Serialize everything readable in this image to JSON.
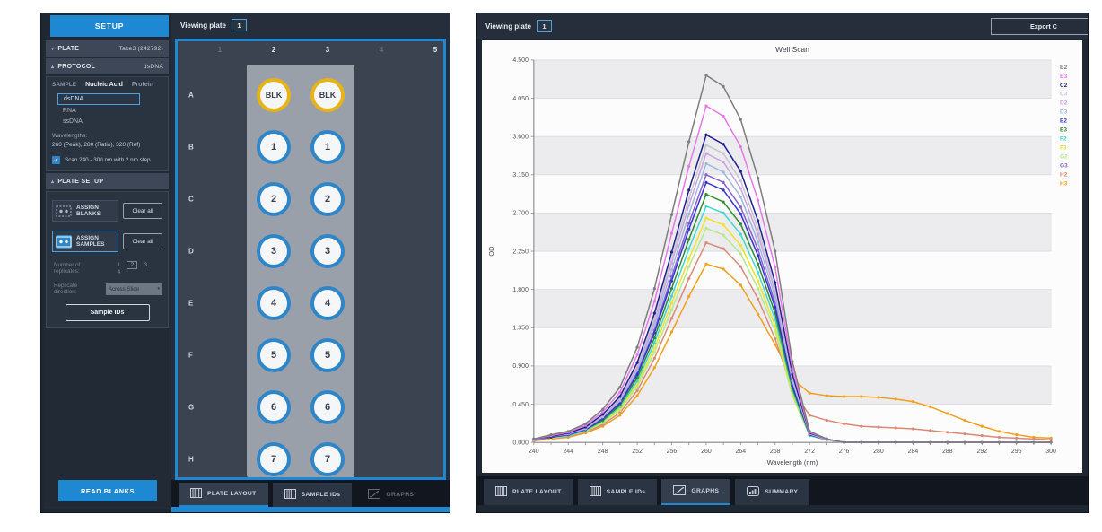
{
  "accent_color": "#1e88d2",
  "left_window": {
    "sidebar": {
      "setup_title": "SETUP",
      "plate_row": {
        "label": "PLATE",
        "value": "Take3 (242792)"
      },
      "protocol_row": {
        "label": "PROTOCOL",
        "value": "dsDNA"
      },
      "sample_section": {
        "label": "SAMPLE",
        "type_tabs": [
          {
            "label": "Nucleic Acid",
            "active": true
          },
          {
            "label": "Protein",
            "active": false
          }
        ],
        "options": [
          "dsDNA",
          "RNA",
          "ssDNA"
        ],
        "selected_option": "dsDNA",
        "wavelengths_label": "Wavelengths:",
        "wavelengths_value": "260 (Peak), 280 (Ratio), 320 (Ref)",
        "scan_option": {
          "checked": true,
          "label": "Scan 240 - 300 nm with 2 nm step"
        }
      },
      "plate_setup_section": {
        "label": "PLATE SETUP",
        "assign_blanks_label": "ASSIGN BLANKS",
        "assign_samples_label": "ASSIGN SAMPLES",
        "clear_all_label": "Clear all",
        "replicates_label": "Number of replicates:",
        "replicates_options": [
          "1",
          "2",
          "3",
          "4"
        ],
        "replicates_selected": "2",
        "direction_label": "Replicate direction:",
        "direction_value": "Across Slide",
        "sample_ids_label": "Sample IDs"
      },
      "read_blanks_label": "READ BLANKS"
    },
    "plate_view": {
      "header_label": "Viewing plate",
      "plate_number": "1",
      "column_labels": [
        "1",
        "2",
        "3",
        "4",
        "5"
      ],
      "column_dimmed": [
        true,
        false,
        false,
        true,
        false
      ],
      "row_labels": [
        "A",
        "B",
        "C",
        "D",
        "E",
        "F",
        "G",
        "H"
      ],
      "well_labels_by_row": [
        "BLK",
        "1",
        "2",
        "3",
        "4",
        "5",
        "6",
        "7"
      ],
      "well_columns": [
        "2",
        "3"
      ],
      "blank_ring_color": "#e7b416",
      "sample_ring_color": "#2e86c8"
    },
    "tabs": [
      {
        "label": "PLATE LAYOUT",
        "icon": "grid",
        "active": true,
        "dimmed": false
      },
      {
        "label": "SAMPLE IDs",
        "icon": "grid",
        "active": false,
        "dimmed": false
      },
      {
        "label": "GRAPHS",
        "icon": "line",
        "active": false,
        "dimmed": true
      }
    ]
  },
  "right_window": {
    "header_label": "Viewing plate",
    "plate_number": "1",
    "export_button_label": "Export C",
    "tabs": [
      {
        "label": "PLATE LAYOUT",
        "icon": "grid",
        "active": false,
        "dimmed": false
      },
      {
        "label": "SAMPLE IDs",
        "icon": "grid",
        "active": false,
        "dimmed": false
      },
      {
        "label": "GRAPHS",
        "icon": "line",
        "active": true,
        "dimmed": false
      },
      {
        "label": "SUMMARY",
        "icon": "bars",
        "active": false,
        "dimmed": false
      }
    ]
  },
  "chart_data": {
    "type": "line",
    "title": "Well Scan",
    "xlabel": "Wavelength (nm)",
    "ylabel": "OD",
    "xlim": [
      240,
      300
    ],
    "ylim": [
      0,
      4.5
    ],
    "x_tick_labels": [
      240,
      244,
      248,
      252,
      256,
      260,
      264,
      268,
      272,
      276,
      280,
      284,
      288,
      292,
      296,
      300
    ],
    "y_tick_labels": [
      "0.000",
      "0.450",
      "0.900",
      "1.350",
      "1.800",
      "2.250",
      "2.700",
      "3.150",
      "3.600",
      "4.050",
      "4.500"
    ],
    "grid": true,
    "striped_background": true,
    "legend_position": "right",
    "x": [
      240,
      242,
      244,
      246,
      248,
      250,
      252,
      254,
      256,
      258,
      260,
      262,
      264,
      266,
      268,
      270,
      272,
      274,
      276,
      278,
      280,
      282,
      284,
      286,
      288,
      290,
      292,
      294,
      296,
      298,
      300
    ],
    "series": [
      {
        "name": "B2",
        "color": "#7d7d7d",
        "values": [
          0.04,
          0.09,
          0.13,
          0.22,
          0.39,
          0.65,
          1.12,
          1.81,
          2.68,
          3.54,
          4.32,
          4.19,
          3.8,
          3.11,
          2.25,
          0.95,
          0.13,
          0.04,
          0,
          0,
          0,
          0,
          0,
          0,
          0,
          0,
          0,
          0,
          0,
          0,
          0
        ]
      },
      {
        "name": "B3",
        "color": "#e678e6",
        "values": [
          0.04,
          0.08,
          0.12,
          0.2,
          0.36,
          0.59,
          1.03,
          1.66,
          2.46,
          3.25,
          3.96,
          3.84,
          3.48,
          2.85,
          2.06,
          0.87,
          0.12,
          0.04,
          0,
          0,
          0,
          0,
          0,
          0,
          0,
          0,
          0,
          0,
          0,
          0,
          0
        ]
      },
      {
        "name": "C2",
        "color": "#20208c",
        "values": [
          0.04,
          0.07,
          0.11,
          0.18,
          0.33,
          0.54,
          0.94,
          1.52,
          2.24,
          2.97,
          3.62,
          3.51,
          3.19,
          2.61,
          1.88,
          0.8,
          0.11,
          0.04,
          0,
          0,
          0,
          0,
          0,
          0,
          0,
          0,
          0,
          0,
          0,
          0,
          0
        ]
      },
      {
        "name": "C3",
        "color": "#c6c6ce",
        "values": [
          0.04,
          0.07,
          0.11,
          0.18,
          0.32,
          0.53,
          0.91,
          1.47,
          2.17,
          2.87,
          3.5,
          3.4,
          3.08,
          2.52,
          1.82,
          0.77,
          0.11,
          0.03,
          0,
          0,
          0,
          0,
          0,
          0,
          0,
          0,
          0,
          0,
          0,
          0,
          0
        ]
      },
      {
        "name": "D2",
        "color": "#c9a3e0",
        "values": [
          0.03,
          0.07,
          0.1,
          0.17,
          0.31,
          0.51,
          0.88,
          1.43,
          2.11,
          2.79,
          3.4,
          3.3,
          2.99,
          2.45,
          1.77,
          0.75,
          0.1,
          0.03,
          0,
          0,
          0,
          0,
          0,
          0,
          0,
          0,
          0,
          0,
          0,
          0,
          0
        ]
      },
      {
        "name": "D3",
        "color": "#9db8dc",
        "values": [
          0.03,
          0.07,
          0.1,
          0.16,
          0.3,
          0.49,
          0.85,
          1.38,
          2.03,
          2.69,
          3.28,
          3.18,
          2.89,
          2.36,
          1.71,
          0.72,
          0.1,
          0.03,
          0,
          0,
          0,
          0,
          0,
          0,
          0,
          0,
          0,
          0,
          0,
          0,
          0
        ]
      },
      {
        "name": "E2",
        "color": "#3434cf",
        "values": [
          0.03,
          0.06,
          0.09,
          0.15,
          0.28,
          0.46,
          0.8,
          1.29,
          1.9,
          2.51,
          3.06,
          2.97,
          2.69,
          2.2,
          1.59,
          0.67,
          0.09,
          0.03,
          0,
          0,
          0,
          0,
          0,
          0,
          0,
          0,
          0,
          0,
          0,
          0,
          0
        ]
      },
      {
        "name": "E3",
        "color": "#2e8b2e",
        "values": [
          0.03,
          0.06,
          0.09,
          0.15,
          0.26,
          0.44,
          0.76,
          1.23,
          1.81,
          2.39,
          2.92,
          2.83,
          2.57,
          2.1,
          1.52,
          0.64,
          0.09,
          0.03,
          0,
          0,
          0,
          0,
          0,
          0,
          0,
          0,
          0,
          0,
          0,
          0,
          0
        ]
      },
      {
        "name": "F2",
        "color": "#3fd8cf",
        "values": [
          0.03,
          0.06,
          0.08,
          0.14,
          0.25,
          0.42,
          0.72,
          1.17,
          1.72,
          2.28,
          2.78,
          2.7,
          2.45,
          2.0,
          1.45,
          0.61,
          0.08,
          0.03,
          0,
          0,
          0,
          0,
          0,
          0,
          0,
          0,
          0,
          0,
          0,
          0,
          0
        ]
      },
      {
        "name": "F3",
        "color": "#ece32a",
        "values": [
          0.03,
          0.05,
          0.08,
          0.13,
          0.24,
          0.4,
          0.69,
          1.11,
          1.64,
          2.16,
          2.64,
          2.56,
          2.32,
          1.9,
          1.37,
          0.58,
          0.08,
          0.03,
          0,
          0,
          0,
          0,
          0,
          0,
          0,
          0,
          0,
          0,
          0,
          0,
          0
        ]
      },
      {
        "name": "G2",
        "color": "#b5e88c",
        "values": [
          0.03,
          0.05,
          0.08,
          0.13,
          0.23,
          0.38,
          0.66,
          1.06,
          1.56,
          2.07,
          2.52,
          2.44,
          2.22,
          1.81,
          1.31,
          0.55,
          0.08,
          0.03,
          0,
          0,
          0,
          0,
          0,
          0,
          0,
          0,
          0,
          0,
          0,
          0,
          0
        ]
      },
      {
        "name": "G3",
        "color": "#8a5fd0",
        "values": [
          0.03,
          0.06,
          0.09,
          0.16,
          0.28,
          0.47,
          0.82,
          1.32,
          1.95,
          2.58,
          3.15,
          3.06,
          2.77,
          2.27,
          1.64,
          0.69,
          0.09,
          0.03,
          0,
          0,
          0,
          0,
          0,
          0,
          0,
          0,
          0,
          0,
          0,
          0,
          0
        ]
      },
      {
        "name": "H2",
        "color": "#d88a78",
        "values": [
          0.02,
          0.05,
          0.07,
          0.12,
          0.21,
          0.35,
          0.61,
          0.99,
          1.46,
          1.93,
          2.35,
          2.28,
          2.07,
          1.69,
          1.22,
          0.62,
          0.32,
          0.26,
          0.22,
          0.19,
          0.18,
          0.17,
          0.16,
          0.14,
          0.12,
          0.1,
          0.08,
          0.06,
          0.05,
          0.04,
          0.03
        ]
      },
      {
        "name": "H3",
        "color": "#f0a01e",
        "values": [
          0.02,
          0.04,
          0.06,
          0.11,
          0.19,
          0.32,
          0.55,
          0.88,
          1.3,
          1.72,
          2.1,
          2.04,
          1.85,
          1.51,
          1.15,
          0.75,
          0.58,
          0.55,
          0.54,
          0.54,
          0.53,
          0.51,
          0.48,
          0.42,
          0.34,
          0.26,
          0.19,
          0.13,
          0.09,
          0.06,
          0.05
        ]
      }
    ]
  }
}
